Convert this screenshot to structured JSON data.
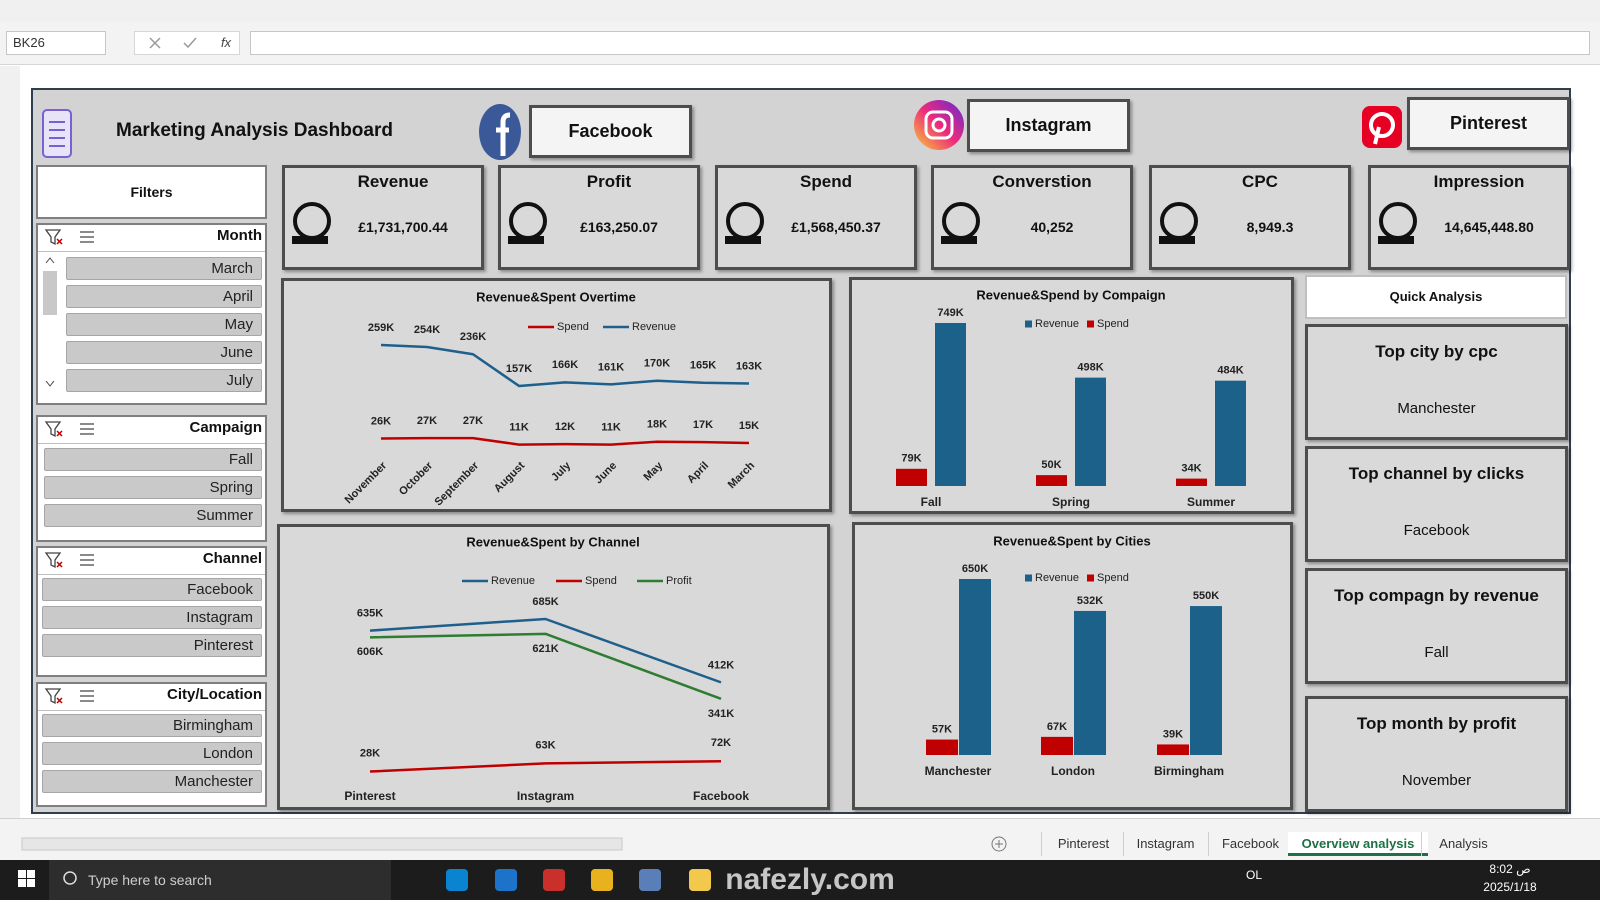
{
  "excel": {
    "name_box": "BK26",
    "fx": "fx",
    "sheet_tabs": [
      "Pinterest",
      "Instagram",
      "Facebook",
      "Overview analysis",
      "Analysis"
    ]
  },
  "dashboard": {
    "title": "Marketing Analysis Dashboard",
    "channel_buttons": [
      "Facebook",
      "Instagram",
      "Pinterest"
    ],
    "kpis": [
      {
        "label": "Revenue",
        "value": "£1,731,700.44"
      },
      {
        "label": "Profit",
        "value": "£163,250.07"
      },
      {
        "label": "Spend",
        "value": "£1,568,450.37"
      },
      {
        "label": "Converstion",
        "value": "40,252"
      },
      {
        "label": "CPC",
        "value": "8,949.3"
      },
      {
        "label": "Impression",
        "value": "14,645,448.80"
      }
    ],
    "filters": {
      "title": "Filters",
      "slicers": [
        {
          "title": "Month",
          "items": [
            "March",
            "April",
            "May",
            "June",
            "July"
          ]
        },
        {
          "title": "Campaign",
          "items": [
            "Fall",
            "Spring",
            "Summer"
          ]
        },
        {
          "title": "Channel",
          "items": [
            "Facebook",
            "Instagram",
            "Pinterest"
          ]
        },
        {
          "title": "City/Location",
          "items": [
            "Birmingham",
            "London",
            "Manchester"
          ]
        }
      ]
    },
    "quick_analysis": {
      "title": "Quick Analysis",
      "cards": [
        {
          "label": "Top city by cpc",
          "value": "Manchester"
        },
        {
          "label": "Top channel by clicks",
          "value": "Facebook"
        },
        {
          "label": "Top compagn by revenue",
          "value": "Fall"
        },
        {
          "label": "Top month by profit",
          "value": "November"
        }
      ]
    }
  },
  "chart_data": [
    {
      "type": "line",
      "title": "Revenue&Spent Overtime",
      "categories": [
        "November",
        "October",
        "September",
        "August",
        "July",
        "June",
        "May",
        "April",
        "March"
      ],
      "series": [
        {
          "name": "Spend",
          "color": "#c00000",
          "values": [
            26000,
            27000,
            27000,
            11000,
            12000,
            11000,
            18000,
            17000,
            15000
          ],
          "value_labels": [
            "26K",
            "27K",
            "27K",
            "11K",
            "12K",
            "11K",
            "18K",
            "17K",
            "15K"
          ]
        },
        {
          "name": "Revenue",
          "color": "#1f5f8b",
          "values": [
            259000,
            254000,
            236000,
            157000,
            166000,
            161000,
            170000,
            165000,
            163000
          ],
          "value_labels": [
            "259K",
            "254K",
            "236K",
            "157K",
            "166K",
            "161K",
            "170K",
            "165K",
            "163K"
          ]
        }
      ]
    },
    {
      "type": "bar",
      "title": "Revenue&Spend by Compaign",
      "categories": [
        "Fall",
        "Spring",
        "Summer"
      ],
      "series": [
        {
          "name": "Revenue",
          "color": "#1b6189",
          "values": [
            749000,
            498000,
            484000
          ],
          "value_labels": [
            "749K",
            "498K",
            "484K"
          ]
        },
        {
          "name": "Spend",
          "color": "#c00000",
          "values": [
            79000,
            50000,
            34000
          ],
          "value_labels": [
            "79K",
            "50K",
            "34K"
          ]
        }
      ]
    },
    {
      "type": "line",
      "title": "Revenue&Spent by Channel",
      "categories": [
        "Pinterest",
        "Instagram",
        "Facebook"
      ],
      "series": [
        {
          "name": "Revenue",
          "color": "#1f5f8b",
          "values": [
            635000,
            685000,
            412000
          ],
          "value_labels": [
            "635K",
            "685K",
            "412K"
          ]
        },
        {
          "name": "Spend",
          "color": "#c00000",
          "values": [
            28000,
            63000,
            72000
          ],
          "value_labels": [
            "28K",
            "63K",
            "72K"
          ]
        },
        {
          "name": "Profit",
          "color": "#2e7d32",
          "values": [
            606000,
            621000,
            341000
          ],
          "value_labels": [
            "606K",
            "621K",
            "341K"
          ]
        }
      ]
    },
    {
      "type": "bar",
      "title": "Revenue&Spent by Cities",
      "categories": [
        "Manchester",
        "London",
        "Birmingham"
      ],
      "series": [
        {
          "name": "Revenue",
          "color": "#1b6189",
          "values": [
            650000,
            532000,
            550000
          ],
          "value_labels": [
            "650K",
            "532K",
            "550K"
          ]
        },
        {
          "name": "Spend",
          "color": "#c00000",
          "values": [
            57000,
            67000,
            39000
          ],
          "value_labels": [
            "57K",
            "67K",
            "39K"
          ]
        }
      ]
    }
  ],
  "taskbar": {
    "search": "Type here to search",
    "lang": "OL",
    "time": "8:02 ص",
    "date": "2025/1/18"
  },
  "watermark": "nafezly.com"
}
